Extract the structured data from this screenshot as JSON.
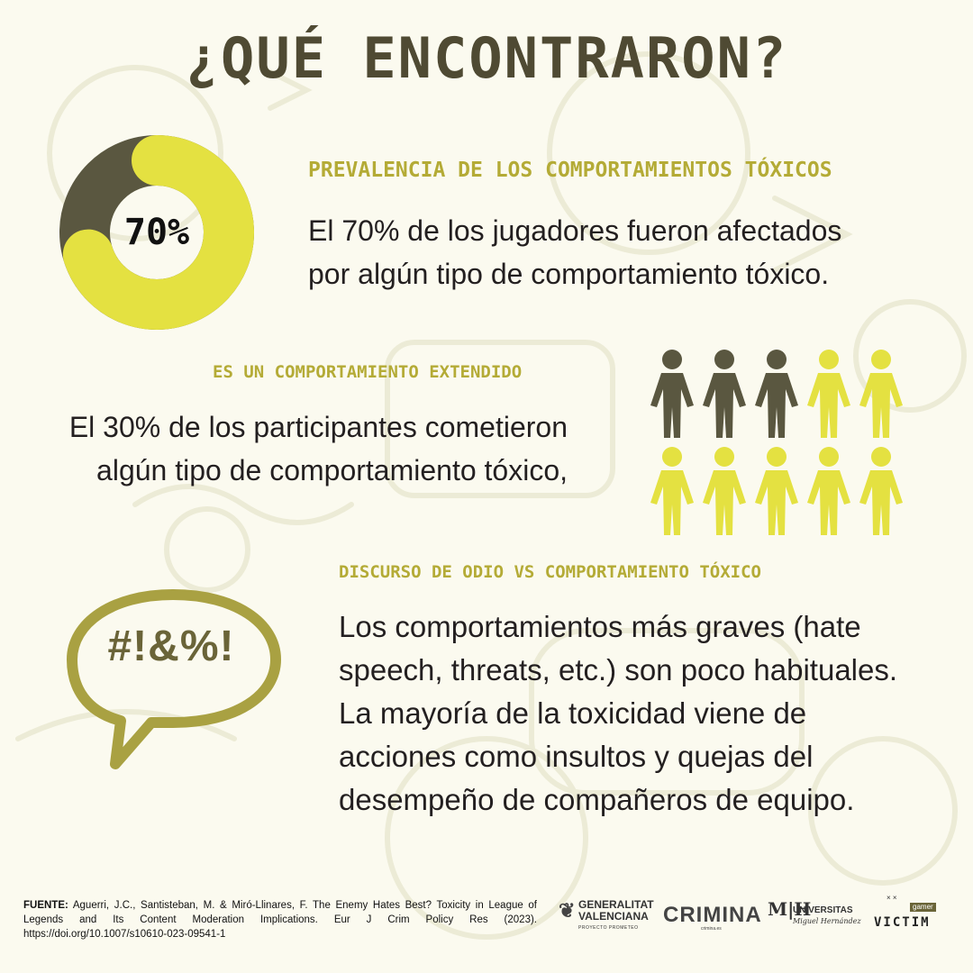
{
  "title": "¿QUÉ ENCONTRARON?",
  "colors": {
    "background": "#fbfaef",
    "dark_olive": "#5a5740",
    "yellow": "#e4e141",
    "heading": "#b4ab36",
    "title": "#4f4a33",
    "bubble": "#a9a142",
    "doodle": "#ecebd6"
  },
  "section1": {
    "heading": "PREVALENCIA DE LOS COMPORTAMIENTOS TÓXICOS",
    "body_line1": "El 70% de los jugadores fueron afectados",
    "body_line2": "por algún tipo de comportamiento tóxico.",
    "donut": {
      "label": "70%",
      "percent": 70
    }
  },
  "section2": {
    "heading": "ES UN COMPORTAMIENTO EXTENDIDO",
    "body_line1": "El 30% de los participantes cometieron",
    "body_line2": "algún tipo de comportamiento tóxico,",
    "pictogram": {
      "total": 10,
      "highlighted": 3,
      "icon": "person-icon"
    }
  },
  "section3": {
    "heading": "DISCURSO DE ODIO VS COMPORTAMIENTO TÓXICO",
    "bubble_text": "#!&%!",
    "body_lines": [
      "Los comportamientos más graves (hate",
      "speech, threats, etc.) son poco habituales.",
      "La mayoría de la toxicidad viene de",
      "acciones como insultos y quejas del",
      "desempeño de compañeros de equipo."
    ]
  },
  "footer": {
    "label": "FUENTE:",
    "text": "Aguerri, J.C., Santisteban, M. & Miró-Llinares, F. The Enemy Hates Best? Toxicity in League of Legends and Its Content Moderation Implications. Eur J Crim Policy Res (2023). https://doi.org/10.1007/s10610-023-09541-1"
  },
  "logos": {
    "gv_line1": "GENERALITAT",
    "gv_line2": "VALENCIANA",
    "gv_sub": "PROYECTO PROMETEO",
    "crimina": "CRIMINA",
    "crimina_sub": "crimina.es",
    "umh_mark": "M|H",
    "umh_line1": "UNIVERSITAS",
    "umh_line2": "Miguel Hernández",
    "gv_victim_gamer": "gamer",
    "gv_victim_victim": "VICTIM",
    "gv_victim_marks": "× ×"
  }
}
